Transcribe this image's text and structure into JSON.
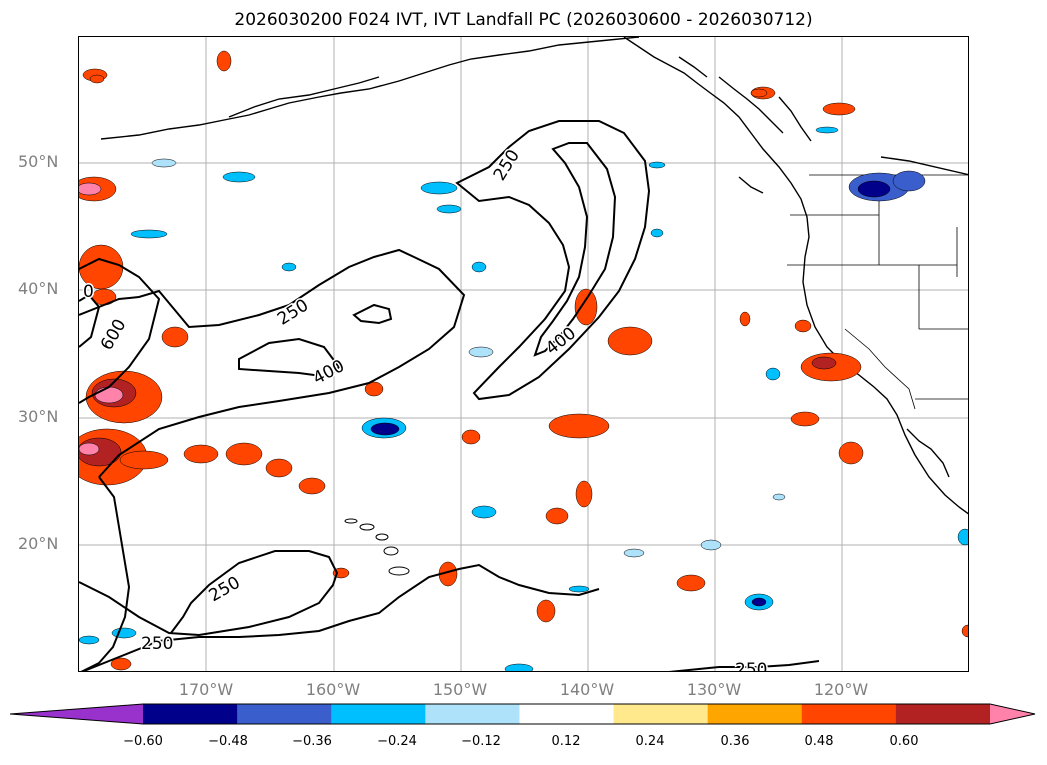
{
  "title": "2026030200 F024 IVT, IVT Landfall PC (2026030600 - 2026030712)",
  "lat_labels": [
    "50°N",
    "40°N",
    "30°N",
    "20°N"
  ],
  "lon_labels": [
    "170°W",
    "160°W",
    "150°W",
    "140°W",
    "130°W",
    "120°W"
  ],
  "contour_labels": {
    "c250_north": "250",
    "c250_center": "250",
    "c400_center": "400",
    "c600_west": "600",
    "c400_curve": "400",
    "c250_south": "250",
    "c250_sw": "250",
    "c250_bottom": "250",
    "c0_edge": "0"
  },
  "colorbar": {
    "ticks": [
      "−0.60",
      "−0.48",
      "−0.36",
      "−0.24",
      "−0.12",
      "0.12",
      "0.24",
      "0.36",
      "0.48",
      "0.60"
    ],
    "colors": [
      "#9932cc",
      "#00008b",
      "#3a5fcd",
      "#00bfff",
      "#aee2fa",
      "#ffffff",
      "#ffe98c",
      "#ffa500",
      "#ff4500",
      "#b22222",
      "#ff82ab"
    ]
  }
}
